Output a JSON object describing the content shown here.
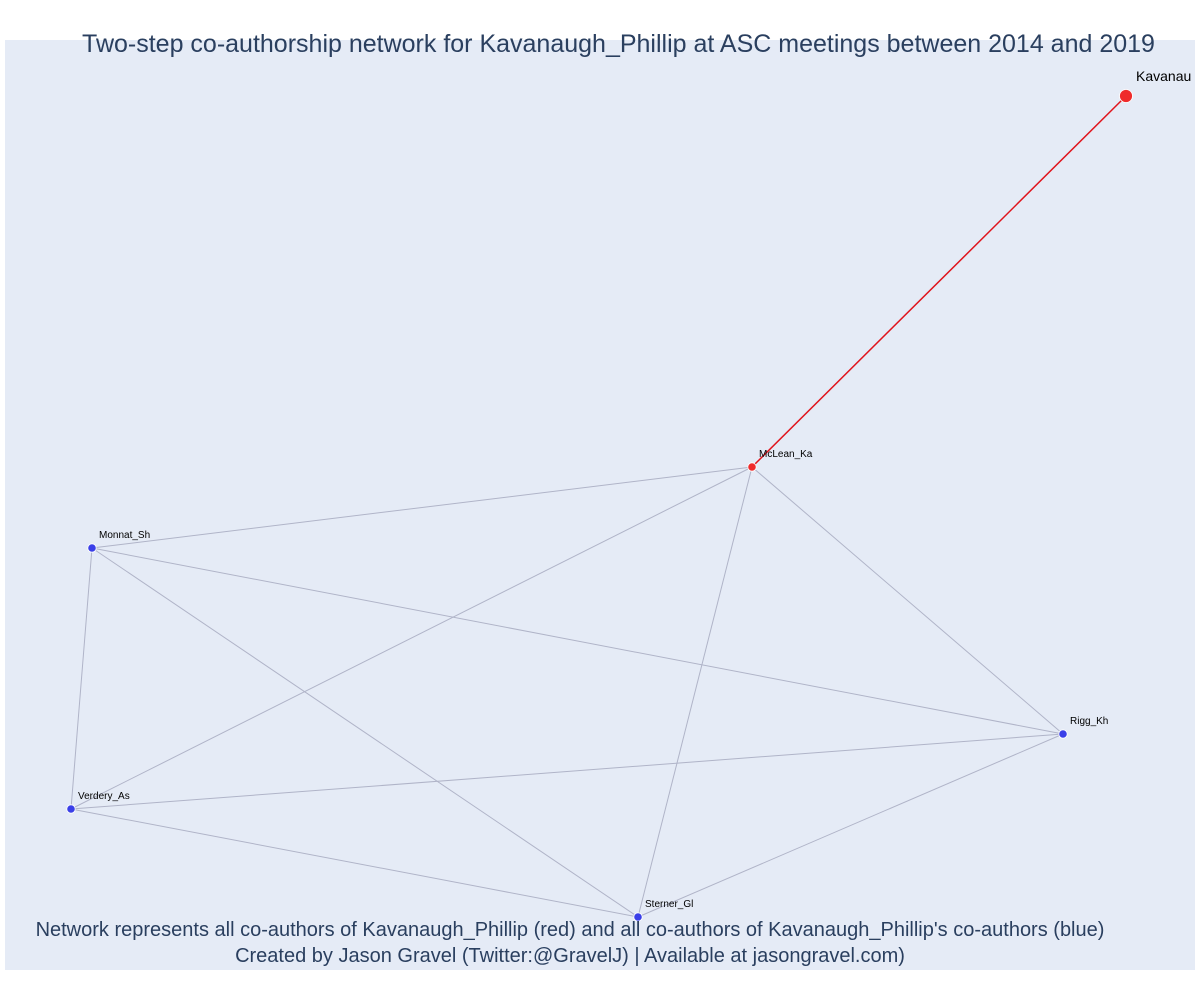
{
  "title": "Two-step co-authorship network for Kavanaugh_Phillip at ASC meetings between 2014 and 2019",
  "caption": {
    "line1": "Network represents all co-authors of Kavanaugh_Phillip (red) and all co-authors of Kavanaugh_Phillip's co-authors (blue)",
    "line2": "Created by Jason Gravel (Twitter:@GravelJ) | Available at jasongravel.com)"
  },
  "colors": {
    "background": "#e5ebf6",
    "ego": "#ef2b2b",
    "direct_coauthor": "#ef2b2b",
    "indirect_coauthor": "#3a3fe8",
    "ego_edge": "#e0141c",
    "other_edge": "#b0b4c8",
    "text": "#2a3f5f"
  },
  "network": {
    "nodes": [
      {
        "id": "Kavanaugh_Phillip",
        "label": "Kavanau",
        "group": "ego"
      },
      {
        "id": "McLean_Ka",
        "label": "McLean_Ka",
        "group": "direct_coauthor"
      },
      {
        "id": "Monnat_Sh",
        "label": "Monnat_Sh",
        "group": "indirect_coauthor"
      },
      {
        "id": "Rigg_Kh",
        "label": "Rigg_Kh",
        "group": "indirect_coauthor"
      },
      {
        "id": "Verdery_As",
        "label": "Verdery_As",
        "group": "indirect_coauthor"
      },
      {
        "id": "Sterner_Gl",
        "label": "Sterner_Gl",
        "group": "indirect_coauthor"
      }
    ],
    "edges": [
      {
        "source": "Kavanaugh_Phillip",
        "target": "McLean_Ka",
        "type": "ego"
      },
      {
        "source": "McLean_Ka",
        "target": "Monnat_Sh",
        "type": "other"
      },
      {
        "source": "McLean_Ka",
        "target": "Verdery_As",
        "type": "other"
      },
      {
        "source": "McLean_Ka",
        "target": "Sterner_Gl",
        "type": "other"
      },
      {
        "source": "McLean_Ka",
        "target": "Rigg_Kh",
        "type": "other"
      },
      {
        "source": "Monnat_Sh",
        "target": "Verdery_As",
        "type": "other"
      },
      {
        "source": "Monnat_Sh",
        "target": "Sterner_Gl",
        "type": "other"
      },
      {
        "source": "Monnat_Sh",
        "target": "Rigg_Kh",
        "type": "other"
      },
      {
        "source": "Verdery_As",
        "target": "Rigg_Kh",
        "type": "other"
      },
      {
        "source": "Verdery_As",
        "target": "Sterner_Gl",
        "type": "other"
      },
      {
        "source": "Sterner_Gl",
        "target": "Rigg_Kh",
        "type": "other"
      }
    ]
  }
}
